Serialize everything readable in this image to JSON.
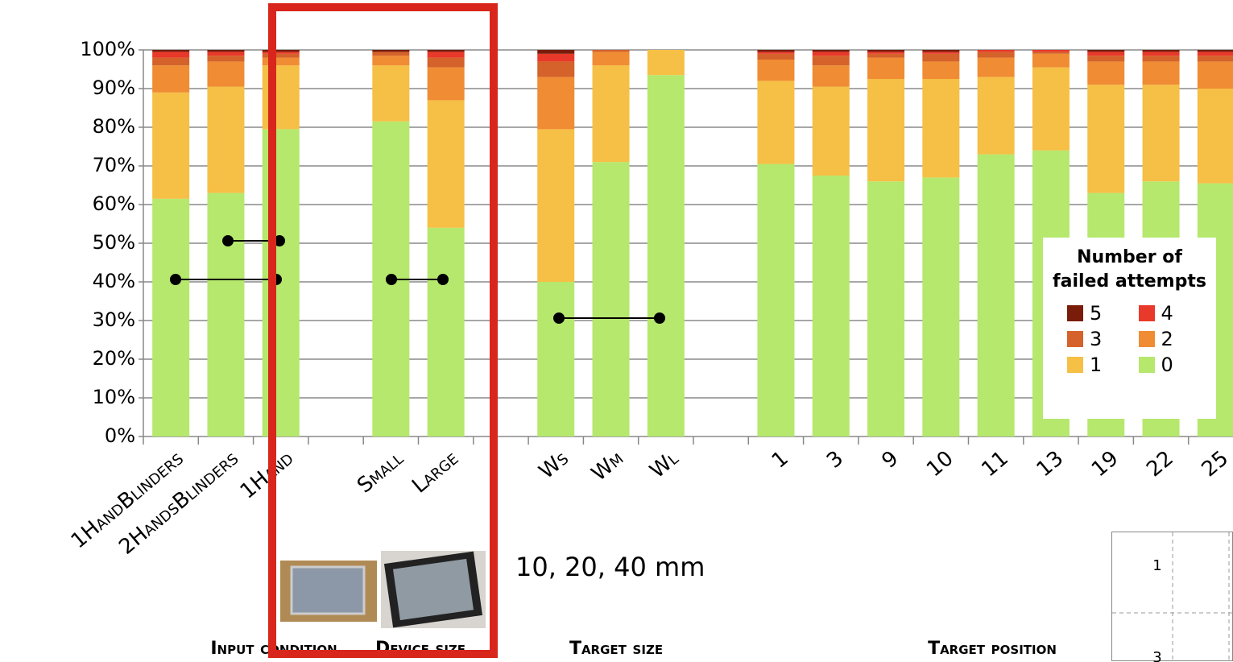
{
  "chart_data": {
    "type": "stacked-bar",
    "categories": [
      "1HandBlinders",
      "2HandsBlinders",
      "1Hand",
      null,
      "Small",
      "Large",
      null,
      "Ws",
      "Wm",
      "Wl",
      null,
      "1",
      "3",
      "9",
      "10",
      "11",
      "13",
      "19",
      "22",
      "25"
    ],
    "series": [
      {
        "name": "0",
        "color": "#b5e86c",
        "values": [
          61.5,
          63,
          79.5,
          null,
          81.5,
          54,
          null,
          40,
          71,
          93.5,
          null,
          70.5,
          67.5,
          66,
          67,
          73,
          74,
          63,
          66,
          65.5
        ]
      },
      {
        "name": "1",
        "color": "#f6bf45",
        "values": [
          27.5,
          27.5,
          16.5,
          null,
          14.5,
          33,
          null,
          39.5,
          25,
          6.5,
          null,
          21.5,
          23,
          26.5,
          25.5,
          20,
          21.5,
          28,
          25,
          24.5
        ]
      },
      {
        "name": "2",
        "color": "#f08c33",
        "values": [
          7,
          6.5,
          2,
          null,
          2.5,
          8.5,
          null,
          13.5,
          3.5,
          0,
          null,
          5.5,
          5.5,
          5.5,
          4.5,
          5,
          3.5,
          6,
          6,
          7
        ]
      },
      {
        "name": "3",
        "color": "#d4622a",
        "values": [
          2,
          1.5,
          1,
          null,
          1,
          2.5,
          null,
          4,
          0.5,
          0,
          null,
          1.5,
          2.5,
          1,
          2,
          1.5,
          0.5,
          1.5,
          1.5,
          1.5
        ]
      },
      {
        "name": "4",
        "color": "#e8392a",
        "values": [
          1.5,
          1,
          0.5,
          null,
          0,
          1.5,
          null,
          2,
          0,
          0,
          null,
          0.5,
          1,
          0.5,
          0.5,
          0.5,
          0.5,
          1,
          1,
          1
        ]
      },
      {
        "name": "5",
        "color": "#7a1c0a",
        "values": [
          0.5,
          0.5,
          0.5,
          null,
          0.5,
          0.5,
          null,
          1,
          0,
          0,
          null,
          0.5,
          0.5,
          0.5,
          0.5,
          0,
          0,
          0.5,
          0.5,
          0.5
        ]
      }
    ],
    "ylim": [
      0,
      100
    ],
    "yticks": [
      {
        "value": 0,
        "label": "0%"
      },
      {
        "value": 10,
        "label": "10%"
      },
      {
        "value": 20,
        "label": "20%"
      },
      {
        "value": 30,
        "label": "30%"
      },
      {
        "value": 40,
        "label": "40%"
      },
      {
        "value": 50,
        "label": "50%"
      },
      {
        "value": 60,
        "label": "60%"
      },
      {
        "value": 70,
        "label": "70%"
      },
      {
        "value": 80,
        "label": "80%"
      },
      {
        "value": 90,
        "label": "90%"
      },
      {
        "value": 100,
        "label": "100%"
      }
    ],
    "grid": true,
    "legend": {
      "title": "Number of failed attempts",
      "position": "right"
    },
    "annotations": [
      "10, 20, 40 mm",
      "Input condition",
      "Device size",
      "Target size",
      "Target position"
    ]
  },
  "inset_labels": [
    "1",
    "3"
  ]
}
